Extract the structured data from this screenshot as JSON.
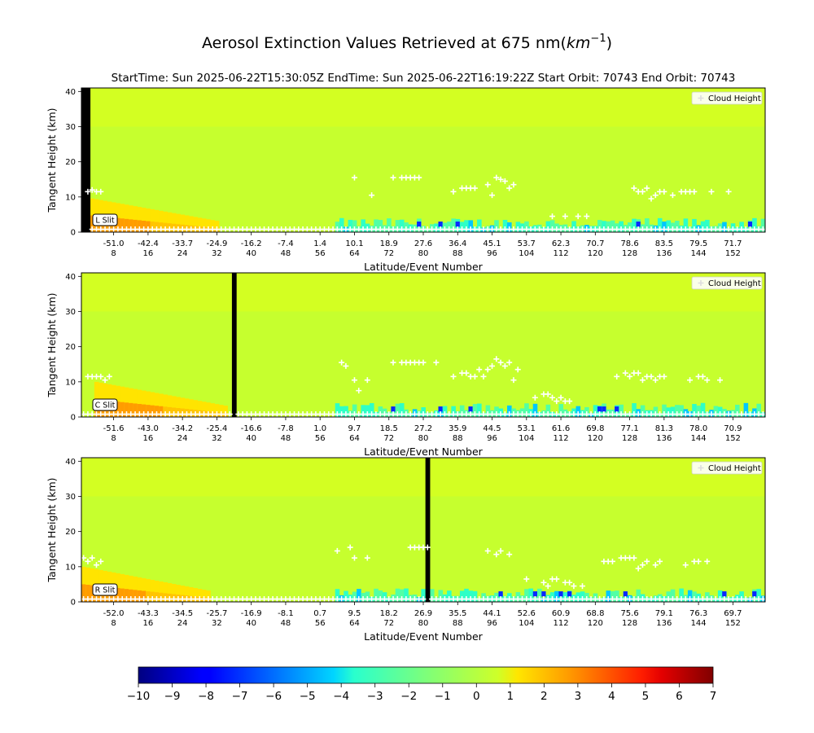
{
  "figure": {
    "title_main": "Aerosol Extinction Values Retrieved at 675 nm(",
    "title_unit": "km",
    "title_exp": "−1",
    "title_close": ")",
    "subtitle": "StartTime: Sun 2025-06-22T15:30:05Z  EndTime: Sun 2025-06-22T16:19:22Z  Start Orbit: 70743 End Orbit: 70743"
  },
  "colors": {
    "background_field": "#c6ff2e",
    "upper_field": "#d9ff1e",
    "missing_column": "#000000",
    "cloud_marker": "#ffffff",
    "colormap": "jet"
  },
  "chart_data": [
    {
      "type": "heatmap",
      "slit_label": "L Slit",
      "legend_label": "Cloud Height",
      "xlabel": "Latitude/Event Number",
      "ylabel": "Tangent Height (km)",
      "ylim": [
        0,
        41
      ],
      "yticks": [
        "0",
        "10",
        "20",
        "30",
        "40"
      ],
      "x_event_range": [
        1,
        159
      ],
      "latitude_ticks": [
        "-51.0",
        "-42.4",
        "-33.7",
        "-24.9",
        "-16.2",
        "-7.4",
        "1.4",
        "10.1",
        "18.9",
        "27.6",
        "36.4",
        "45.1",
        "53.7",
        "62.3",
        "70.7",
        "78.6",
        "83.5",
        "79.5",
        "71.7"
      ],
      "event_ticks": [
        "8",
        "16",
        "24",
        "32",
        "40",
        "48",
        "56",
        "64",
        "72",
        "80",
        "88",
        "96",
        "104",
        "112",
        "120",
        "128",
        "136",
        "144",
        "152"
      ],
      "missing_events": [
        1,
        2
      ],
      "near_surface_peak_events": [
        1,
        32
      ],
      "cloud_heights": [
        [
          2,
          11.5
        ],
        [
          3,
          12
        ],
        [
          4,
          11.5
        ],
        [
          5,
          11.5
        ],
        [
          64,
          15.5
        ],
        [
          68,
          10.5
        ],
        [
          73,
          15.5
        ],
        [
          75,
          15.5
        ],
        [
          76,
          15.5
        ],
        [
          77,
          15.5
        ],
        [
          78,
          15.5
        ],
        [
          79,
          15.5
        ],
        [
          87,
          11.5
        ],
        [
          89,
          12.5
        ],
        [
          90,
          12.5
        ],
        [
          91,
          12.5
        ],
        [
          92,
          12.5
        ],
        [
          95,
          13.5
        ],
        [
          96,
          10.5
        ],
        [
          97,
          15.5
        ],
        [
          98,
          15
        ],
        [
          99,
          14.5
        ],
        [
          100,
          12.5
        ],
        [
          101,
          13.5
        ],
        [
          110,
          4.5
        ],
        [
          113,
          4.5
        ],
        [
          116,
          4.5
        ],
        [
          118,
          4.5
        ],
        [
          129,
          12.5
        ],
        [
          130,
          11.5
        ],
        [
          131,
          11.5
        ],
        [
          132,
          12.5
        ],
        [
          133,
          9.5
        ],
        [
          134,
          10.5
        ],
        [
          135,
          11.5
        ],
        [
          136,
          11.5
        ],
        [
          138,
          10.5
        ],
        [
          140,
          11.5
        ],
        [
          141,
          11.5
        ],
        [
          142,
          11.5
        ],
        [
          143,
          11.5
        ],
        [
          147,
          11.5
        ],
        [
          151,
          11.5
        ]
      ],
      "surface_markers_all_events": true
    },
    {
      "type": "heatmap",
      "slit_label": "C Slit",
      "legend_label": "Cloud Height",
      "xlabel": "Latitude/Event Number",
      "ylabel": "Tangent Height (km)",
      "ylim": [
        0,
        41
      ],
      "yticks": [
        "0",
        "10",
        "20",
        "30",
        "40"
      ],
      "x_event_range": [
        1,
        159
      ],
      "latitude_ticks": [
        "-51.6",
        "-43.0",
        "-34.2",
        "-25.4",
        "-16.6",
        "-7.8",
        "1.0",
        "9.7",
        "18.5",
        "27.2",
        "35.9",
        "44.5",
        "53.1",
        "61.6",
        "69.8",
        "77.1",
        "81.3",
        "78.0",
        "70.9"
      ],
      "event_ticks": [
        "8",
        "16",
        "24",
        "32",
        "40",
        "48",
        "56",
        "64",
        "72",
        "80",
        "88",
        "96",
        "104",
        "112",
        "120",
        "128",
        "136",
        "144",
        "152"
      ],
      "missing_events": [
        36
      ],
      "near_surface_peak_events": [
        4,
        34
      ],
      "cloud_heights": [
        [
          2,
          11.5
        ],
        [
          3,
          11.5
        ],
        [
          4,
          11.5
        ],
        [
          5,
          11.5
        ],
        [
          6,
          10.5
        ],
        [
          7,
          11.5
        ],
        [
          61,
          15.5
        ],
        [
          62,
          14.5
        ],
        [
          64,
          10.5
        ],
        [
          65,
          7.5
        ],
        [
          67,
          10.5
        ],
        [
          73,
          15.5
        ],
        [
          75,
          15.5
        ],
        [
          76,
          15.5
        ],
        [
          77,
          15.5
        ],
        [
          78,
          15.5
        ],
        [
          79,
          15.5
        ],
        [
          80,
          15.5
        ],
        [
          83,
          15.5
        ],
        [
          87,
          11.5
        ],
        [
          89,
          12.5
        ],
        [
          90,
          12.5
        ],
        [
          91,
          11.5
        ],
        [
          92,
          11.5
        ],
        [
          93,
          13.5
        ],
        [
          94,
          11.5
        ],
        [
          95,
          13.5
        ],
        [
          96,
          14.5
        ],
        [
          97,
          16.5
        ],
        [
          98,
          15.5
        ],
        [
          99,
          14.5
        ],
        [
          100,
          15.5
        ],
        [
          101,
          10.5
        ],
        [
          102,
          13.5
        ],
        [
          106,
          5.5
        ],
        [
          108,
          6.5
        ],
        [
          109,
          6.5
        ],
        [
          110,
          5.5
        ],
        [
          111,
          4.5
        ],
        [
          112,
          5.5
        ],
        [
          113,
          4.5
        ],
        [
          114,
          4.5
        ],
        [
          125,
          11.5
        ],
        [
          127,
          12.5
        ],
        [
          128,
          11.5
        ],
        [
          129,
          12.5
        ],
        [
          130,
          12.5
        ],
        [
          131,
          10.5
        ],
        [
          132,
          11.5
        ],
        [
          133,
          11.5
        ],
        [
          134,
          10.5
        ],
        [
          135,
          11.5
        ],
        [
          136,
          11.5
        ],
        [
          142,
          10.5
        ],
        [
          144,
          11.5
        ],
        [
          145,
          11.5
        ],
        [
          146,
          10.5
        ],
        [
          149,
          10.5
        ]
      ],
      "surface_markers_all_events": true
    },
    {
      "type": "heatmap",
      "slit_label": "R Slit",
      "legend_label": "Cloud Height",
      "xlabel": "Latitude/Event Number",
      "ylabel": "Tangent Height (km)",
      "ylim": [
        0,
        41
      ],
      "yticks": [
        "0",
        "10",
        "20",
        "30",
        "40"
      ],
      "x_event_range": [
        1,
        159
      ],
      "latitude_ticks": [
        "-52.0",
        "-43.3",
        "-34.5",
        "-25.7",
        "-16.9",
        "-8.1",
        "0.7",
        "9.5",
        "18.2",
        "26.9",
        "35.5",
        "44.1",
        "52.6",
        "60.9",
        "68.8",
        "75.6",
        "79.1",
        "76.3",
        "69.7"
      ],
      "event_ticks": [
        "8",
        "16",
        "24",
        "32",
        "40",
        "48",
        "56",
        "64",
        "72",
        "80",
        "88",
        "96",
        "104",
        "112",
        "120",
        "128",
        "136",
        "144",
        "152"
      ],
      "missing_events": [
        81
      ],
      "near_surface_peak_events": [
        1,
        30
      ],
      "cloud_heights": [
        [
          1,
          12.5
        ],
        [
          2,
          11.5
        ],
        [
          3,
          12.5
        ],
        [
          4,
          10.5
        ],
        [
          5,
          11.5
        ],
        [
          60,
          14.5
        ],
        [
          63,
          15.5
        ],
        [
          64,
          12.5
        ],
        [
          67,
          12.5
        ],
        [
          77,
          15.5
        ],
        [
          78,
          15.5
        ],
        [
          79,
          15.5
        ],
        [
          80,
          15.5
        ],
        [
          81,
          15.5
        ],
        [
          95,
          14.5
        ],
        [
          97,
          13.5
        ],
        [
          98,
          14.5
        ],
        [
          100,
          13.5
        ],
        [
          104,
          6.5
        ],
        [
          108,
          5.5
        ],
        [
          109,
          4.5
        ],
        [
          110,
          6.5
        ],
        [
          111,
          6.5
        ],
        [
          113,
          5.5
        ],
        [
          114,
          5.5
        ],
        [
          115,
          4.5
        ],
        [
          117,
          4.5
        ],
        [
          122,
          11.5
        ],
        [
          123,
          11.5
        ],
        [
          124,
          11.5
        ],
        [
          126,
          12.5
        ],
        [
          127,
          12.5
        ],
        [
          128,
          12.5
        ],
        [
          129,
          12.5
        ],
        [
          130,
          9.5
        ],
        [
          131,
          10.5
        ],
        [
          132,
          11.5
        ],
        [
          134,
          10.5
        ],
        [
          135,
          11.5
        ],
        [
          141,
          10.5
        ],
        [
          143,
          11.5
        ],
        [
          144,
          11.5
        ],
        [
          146,
          11.5
        ]
      ],
      "surface_markers_all_events": true
    },
    {
      "type": "colorbar",
      "ticks": [
        "−10",
        "−9",
        "−8",
        "−7",
        "−6",
        "−5",
        "−4",
        "−3",
        "−2",
        "−1",
        "0",
        "1",
        "2",
        "3",
        "4",
        "5",
        "6",
        "7"
      ],
      "range": [
        -10,
        7
      ],
      "colormap": "jet"
    }
  ]
}
